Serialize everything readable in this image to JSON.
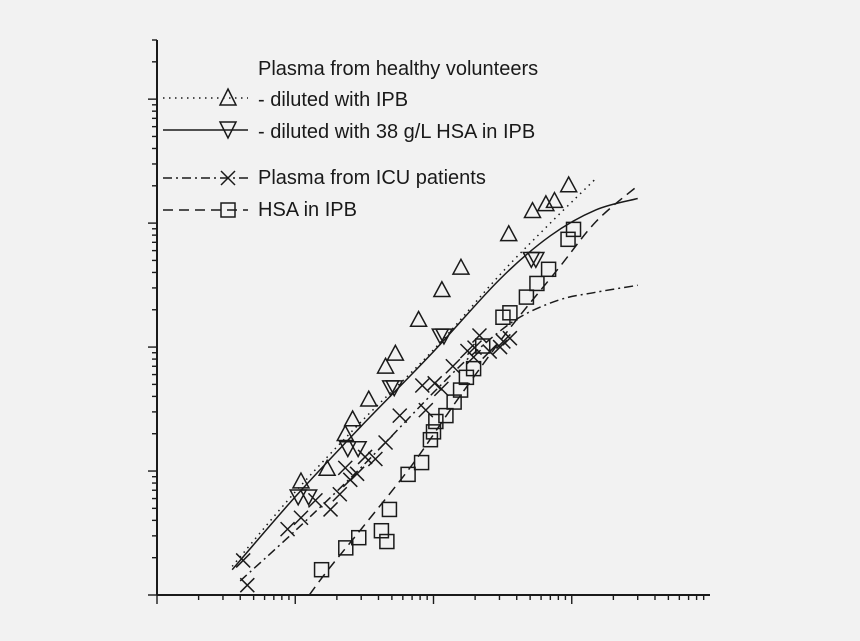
{
  "chart_data": {
    "type": "scatter",
    "x_scale": "log",
    "y_scale": "log",
    "xlim": [
      0.1,
      1000
    ],
    "ylim": [
      0.1,
      3000
    ],
    "grid": false,
    "title": "",
    "xlabel": "",
    "ylabel": "",
    "legend": {
      "placement": "top-left",
      "entries": [
        "Plasma from healthy volunteers",
        "- diluted with IPB",
        "- diluted with 38 g/L HSA in IPB",
        "Plasma from ICU patients",
        "HSA in IPB"
      ]
    },
    "series": [
      {
        "name": "- diluted with IPB",
        "marker": "triangle-up",
        "line": "dotted",
        "points": [
          [
            1.1,
            0.83
          ],
          [
            1.7,
            1.05
          ],
          [
            2.3,
            2.0
          ],
          [
            2.6,
            2.63
          ],
          [
            3.4,
            3.8
          ],
          [
            4.5,
            7.0
          ],
          [
            5.3,
            8.9
          ],
          [
            7.8,
            16.7
          ],
          [
            11.5,
            29
          ],
          [
            15.8,
            44
          ],
          [
            35,
            82
          ],
          [
            52,
            126
          ],
          [
            65,
            143
          ],
          [
            75,
            152
          ],
          [
            95,
            203
          ]
        ]
      },
      {
        "name": "- diluted with 38 g/L HSA in IPB",
        "marker": "triangle-down",
        "line": "solid",
        "points": [
          [
            1.05,
            0.62
          ],
          [
            1.25,
            0.62
          ],
          [
            2.4,
            1.52
          ],
          [
            2.85,
            1.52
          ],
          [
            4.9,
            4.7
          ],
          [
            5.2,
            4.7
          ],
          [
            11.2,
            12.3
          ],
          [
            11.9,
            12.3
          ],
          [
            51,
            51
          ],
          [
            55,
            51
          ]
        ]
      },
      {
        "name": "Plasma from ICU patients",
        "marker": "x",
        "line": "dash-dot",
        "points": [
          [
            0.42,
            0.19
          ],
          [
            0.45,
            0.12
          ],
          [
            0.88,
            0.34
          ],
          [
            1.1,
            0.42
          ],
          [
            1.4,
            0.58
          ],
          [
            1.8,
            0.49
          ],
          [
            2.1,
            0.65
          ],
          [
            2.5,
            0.85
          ],
          [
            2.8,
            0.95
          ],
          [
            2.3,
            1.06
          ],
          [
            3.2,
            1.3
          ],
          [
            3.8,
            1.25
          ],
          [
            4.5,
            1.7
          ],
          [
            5.7,
            2.8
          ],
          [
            8.3,
            4.9
          ],
          [
            8.8,
            3.1
          ],
          [
            10.2,
            5.1
          ],
          [
            11.4,
            4.6
          ],
          [
            13.8,
            7.0
          ],
          [
            17.6,
            9.3
          ],
          [
            19.5,
            8.3
          ],
          [
            19.8,
            9.9
          ],
          [
            21.5,
            12.4
          ],
          [
            25.5,
            9.2
          ],
          [
            30.3,
            10.0
          ],
          [
            32,
            11.1
          ],
          [
            35.7,
            11.8
          ]
        ]
      },
      {
        "name": "HSA in IPB",
        "marker": "square",
        "line": "dashed",
        "points": [
          [
            1.55,
            0.16
          ],
          [
            2.32,
            0.24
          ],
          [
            2.88,
            0.29
          ],
          [
            4.2,
            0.33
          ],
          [
            4.6,
            0.27
          ],
          [
            4.8,
            0.49
          ],
          [
            6.55,
            0.94
          ],
          [
            8.2,
            1.17
          ],
          [
            9.5,
            1.79
          ],
          [
            10.0,
            2.07
          ],
          [
            10.4,
            2.51
          ],
          [
            12.3,
            2.8
          ],
          [
            14.1,
            3.6
          ],
          [
            15.7,
            4.5
          ],
          [
            17.3,
            5.7
          ],
          [
            19.5,
            6.7
          ],
          [
            22.7,
            10.2
          ],
          [
            31.8,
            17.4
          ],
          [
            35.7,
            18.9
          ],
          [
            47,
            25.3
          ],
          [
            56,
            32.6
          ],
          [
            68,
            42.4
          ],
          [
            94,
            74
          ],
          [
            103,
            89
          ]
        ]
      }
    ],
    "fitted_curves": [
      {
        "name": "- diluted with IPB",
        "style": "dotted",
        "points": [
          [
            0.35,
            0.17
          ],
          [
            1,
            0.68
          ],
          [
            3,
            2.5
          ],
          [
            10,
            9.5
          ],
          [
            30,
            38
          ],
          [
            70,
            100
          ],
          [
            150,
            230
          ]
        ]
      },
      {
        "name": "- diluted with 38 g/L HSA in IPB",
        "style": "solid",
        "points": [
          [
            0.35,
            0.16
          ],
          [
            1,
            0.62
          ],
          [
            3,
            2.3
          ],
          [
            10,
            9.2
          ],
          [
            30,
            35
          ],
          [
            70,
            79
          ],
          [
            150,
            128
          ],
          [
            300,
            158
          ]
        ]
      },
      {
        "name": "Plasma from ICU patients",
        "style": "dash-dot",
        "points": [
          [
            0.4,
            0.13
          ],
          [
            1,
            0.33
          ],
          [
            3,
            1.07
          ],
          [
            10,
            4.3
          ],
          [
            20,
            9.1
          ],
          [
            40,
            16.8
          ],
          [
            80,
            23.9
          ],
          [
            150,
            27.7
          ],
          [
            300,
            31.5
          ]
        ]
      },
      {
        "name": "HSA in IPB",
        "style": "dashed",
        "points": [
          [
            0.8,
            0.048
          ],
          [
            1.5,
            0.13
          ],
          [
            3,
            0.34
          ],
          [
            7,
            1.12
          ],
          [
            15,
            3.8
          ],
          [
            35,
            13.8
          ],
          [
            80,
            43
          ],
          [
            150,
            103
          ],
          [
            300,
            200
          ]
        ]
      }
    ],
    "colors": {
      "ink": "#1a1a1a",
      "background": "#f2f2f2"
    }
  }
}
